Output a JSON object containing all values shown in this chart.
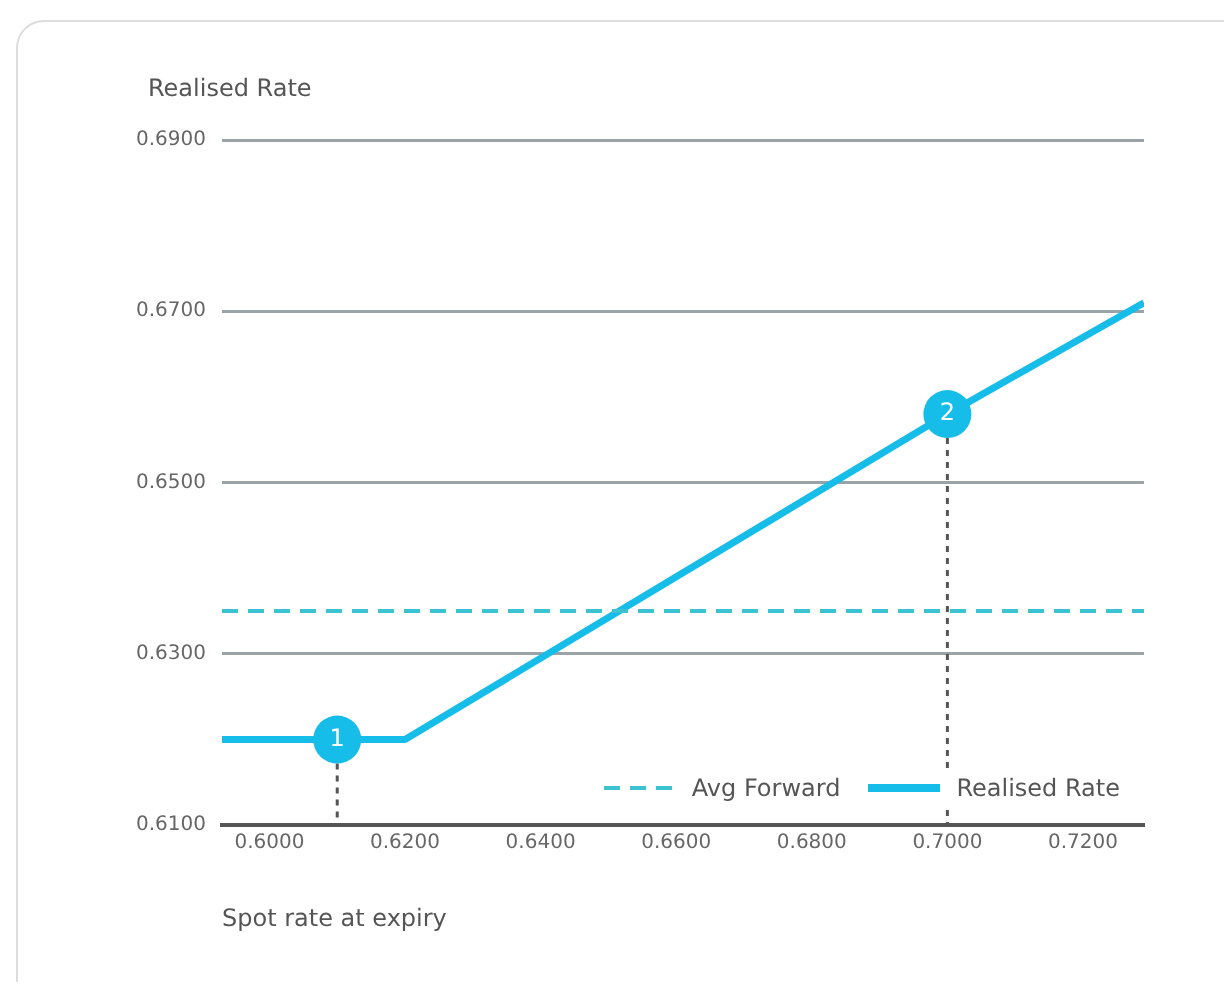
{
  "chart_data": {
    "type": "line",
    "ylabel": "Realised Rate",
    "xlabel": "Spot rate at expiry",
    "xlim": [
      0.593,
      0.729
    ],
    "ylim": [
      0.61,
      0.69
    ],
    "xticks": [
      {
        "value": 0.6,
        "label": "0.6000"
      },
      {
        "value": 0.62,
        "label": "0.6200"
      },
      {
        "value": 0.64,
        "label": "0.6400"
      },
      {
        "value": 0.66,
        "label": "0.6600"
      },
      {
        "value": 0.68,
        "label": "0.6800"
      },
      {
        "value": 0.7,
        "label": "0.7000"
      },
      {
        "value": 0.72,
        "label": "0.7200"
      }
    ],
    "yticks": [
      {
        "value": 0.61,
        "label": "0.6100"
      },
      {
        "value": 0.63,
        "label": "0.6300"
      },
      {
        "value": 0.65,
        "label": "0.6500"
      },
      {
        "value": 0.67,
        "label": "0.6700"
      },
      {
        "value": 0.69,
        "label": "0.6900"
      }
    ],
    "series": [
      {
        "name": "Avg Forward",
        "type": "line",
        "line_style": "dashed",
        "color": "#3cc3d2",
        "x": [
          0.593,
          0.729
        ],
        "values": [
          0.635,
          0.635
        ]
      },
      {
        "name": "Realised Rate",
        "type": "line",
        "line_style": "solid",
        "color": "#16bde8",
        "x": [
          0.593,
          0.62,
          0.7,
          0.729
        ],
        "values": [
          0.62,
          0.62,
          0.658,
          0.671
        ]
      }
    ],
    "annotations": [
      {
        "text": "1",
        "x": 0.61,
        "y": 0.62
      },
      {
        "text": "2",
        "x": 0.7,
        "y": 0.658
      }
    ],
    "grid": "y",
    "legend": "bottom right",
    "marker": "none"
  }
}
